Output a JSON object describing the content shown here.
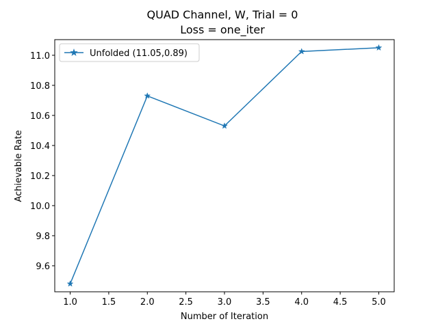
{
  "chart_data": {
    "type": "line",
    "title_lines": [
      "QUAD Channel, W, Trial = 0",
      "Loss = one_iter"
    ],
    "xlabel": "Number of Iteration",
    "ylabel": "Achievable Rate",
    "xlim": [
      0.8,
      5.2
    ],
    "ylim": [
      9.427,
      11.104
    ],
    "xticks": [
      1.0,
      1.5,
      2.0,
      2.5,
      3.0,
      3.5,
      4.0,
      4.5,
      5.0
    ],
    "xtick_labels": [
      "1.0",
      "1.5",
      "2.0",
      "2.5",
      "3.0",
      "3.5",
      "4.0",
      "4.5",
      "5.0"
    ],
    "yticks": [
      9.6,
      9.8,
      10.0,
      10.2,
      10.4,
      10.6,
      10.8,
      11.0
    ],
    "ytick_labels": [
      "9.6",
      "9.8",
      "10.0",
      "10.2",
      "10.4",
      "10.6",
      "10.8",
      "11.0"
    ],
    "grid": false,
    "legend_position": "upper-left",
    "series": [
      {
        "name": "Unfolded (11.05,0.89)",
        "color": "#1f77b4",
        "marker": "star",
        "x": [
          1,
          2,
          3,
          4,
          5
        ],
        "y": [
          9.48,
          10.73,
          10.53,
          11.025,
          11.05
        ]
      }
    ]
  }
}
